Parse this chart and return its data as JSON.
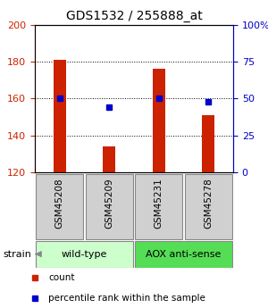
{
  "title": "GDS1532 / 255888_at",
  "samples": [
    "GSM45208",
    "GSM45209",
    "GSM45231",
    "GSM45278"
  ],
  "counts": [
    181,
    134,
    176,
    151
  ],
  "percentiles": [
    50,
    44,
    50,
    48
  ],
  "ylim_left": [
    120,
    200
  ],
  "ylim_right": [
    0,
    100
  ],
  "yticks_left": [
    120,
    140,
    160,
    180,
    200
  ],
  "yticks_right": [
    0,
    25,
    50,
    75,
    100
  ],
  "ytick_labels_right": [
    "0",
    "25",
    "50",
    "75",
    "100%"
  ],
  "bar_color": "#cc2200",
  "dot_color": "#0000cc",
  "groups": [
    {
      "label": "wild-type",
      "indices": [
        0,
        1
      ],
      "color": "#ccffcc"
    },
    {
      "label": "AOX anti-sense",
      "indices": [
        2,
        3
      ],
      "color": "#55dd55"
    }
  ],
  "strain_label": "strain",
  "legend_count_label": "count",
  "legend_pct_label": "percentile rank within the sample",
  "bar_width": 0.25,
  "x_positions": [
    0,
    1,
    2,
    3
  ],
  "sample_box_color": "#d0d0d0",
  "title_fontsize": 10
}
